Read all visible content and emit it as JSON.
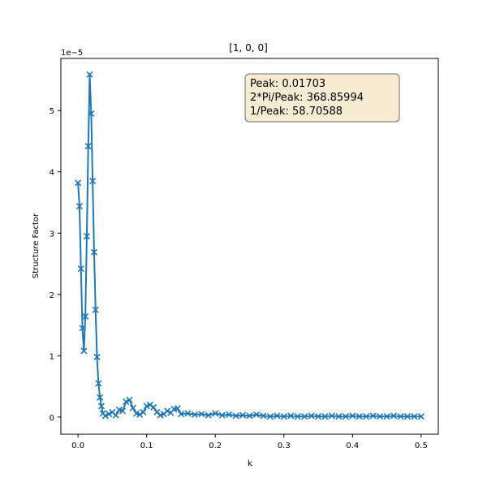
{
  "chart_data": {
    "type": "line",
    "title": "[1, 0, 0]",
    "xlabel": "k",
    "ylabel": "Structure Factor",
    "y_multiplier_label": "1e−5",
    "xlim": [
      -0.025,
      0.525
    ],
    "ylim": [
      -0.28,
      5.85
    ],
    "y_scale_note": "values in units of 1e-5",
    "x_ticks": [
      0.0,
      0.1,
      0.2,
      0.3,
      0.4,
      0.5
    ],
    "x_tick_labels": [
      "0.0",
      "0.1",
      "0.2",
      "0.3",
      "0.4",
      "0.5"
    ],
    "y_ticks": [
      0,
      1,
      2,
      3,
      4,
      5
    ],
    "y_tick_labels": [
      "0",
      "1",
      "2",
      "3",
      "4",
      "5"
    ],
    "grid": false,
    "legend": "none",
    "annotation_lines": [
      "Peak: 0.01703",
      "2*Pi/Peak: 368.85994",
      "1/Peak: 58.70588"
    ],
    "series": [
      {
        "color": "#1f77b4",
        "marker": "x",
        "x": [
          0.0,
          0.00213,
          0.00426,
          0.00639,
          0.00852,
          0.01065,
          0.01278,
          0.01491,
          0.01703,
          0.01916,
          0.02129,
          0.02342,
          0.02555,
          0.02768,
          0.02981,
          0.03194,
          0.03407,
          0.0362,
          0.04,
          0.045,
          0.05,
          0.055,
          0.06,
          0.065,
          0.07,
          0.075,
          0.08,
          0.085,
          0.09,
          0.095,
          0.1,
          0.105,
          0.11,
          0.115,
          0.12,
          0.125,
          0.13,
          0.135,
          0.14,
          0.145,
          0.15,
          0.16,
          0.17,
          0.18,
          0.19,
          0.2,
          0.21,
          0.22,
          0.23,
          0.24,
          0.25,
          0.26,
          0.27,
          0.28,
          0.29,
          0.3,
          0.31,
          0.32,
          0.33,
          0.34,
          0.35,
          0.36,
          0.37,
          0.38,
          0.39,
          0.4,
          0.41,
          0.42,
          0.43,
          0.44,
          0.45,
          0.46,
          0.47,
          0.48,
          0.49,
          0.5
        ],
        "y": [
          3.82,
          3.44,
          2.42,
          1.45,
          1.08,
          1.64,
          2.95,
          4.42,
          5.59,
          4.95,
          3.85,
          2.69,
          1.75,
          0.98,
          0.55,
          0.32,
          0.18,
          0.06,
          0.02,
          0.05,
          0.08,
          0.03,
          0.12,
          0.1,
          0.25,
          0.28,
          0.15,
          0.06,
          0.04,
          0.08,
          0.18,
          0.2,
          0.16,
          0.08,
          0.03,
          0.05,
          0.1,
          0.07,
          0.13,
          0.14,
          0.05,
          0.06,
          0.04,
          0.05,
          0.03,
          0.06,
          0.03,
          0.04,
          0.02,
          0.03,
          0.02,
          0.04,
          0.02,
          0.01,
          0.02,
          0.01,
          0.02,
          0.01,
          0.01,
          0.02,
          0.01,
          0.01,
          0.02,
          0.01,
          0.01,
          0.02,
          0.01,
          0.01,
          0.02,
          0.01,
          0.01,
          0.02,
          0.01,
          0.01,
          0.01,
          0.01
        ]
      }
    ]
  }
}
